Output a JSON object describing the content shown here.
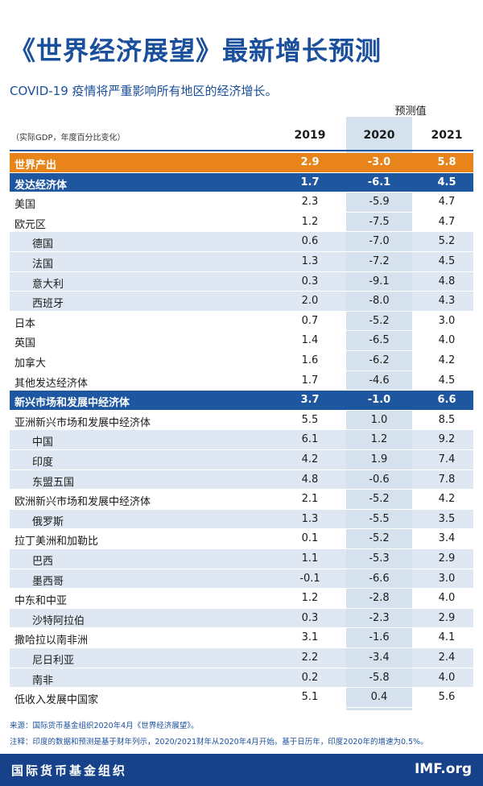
{
  "header": {
    "title": "《世界经济展望》最新增长预测",
    "subtitle": "COVID-19 疫情将严重影响所有地区的经济增长。"
  },
  "table": {
    "forecast_label": "预测值",
    "note": "（实际GDP，年度百分比变化）",
    "columns": [
      "2019",
      "2020",
      "2021"
    ],
    "rows": [
      {
        "label": "世界产出",
        "kind": "world",
        "values": [
          "2.9",
          "-3.0",
          "5.8"
        ]
      },
      {
        "label": "发达经济体",
        "kind": "group",
        "values": [
          "1.7",
          "-6.1",
          "4.5"
        ]
      },
      {
        "label": "美国",
        "kind": "main",
        "values": [
          "2.3",
          "-5.9",
          "4.7"
        ]
      },
      {
        "label": "欧元区",
        "kind": "main",
        "values": [
          "1.2",
          "-7.5",
          "4.7"
        ]
      },
      {
        "label": "德国",
        "kind": "sub",
        "values": [
          "0.6",
          "-7.0",
          "5.2"
        ]
      },
      {
        "label": "法国",
        "kind": "sub",
        "values": [
          "1.3",
          "-7.2",
          "4.5"
        ]
      },
      {
        "label": "意大利",
        "kind": "sub",
        "values": [
          "0.3",
          "-9.1",
          "4.8"
        ]
      },
      {
        "label": "西班牙",
        "kind": "sub",
        "values": [
          "2.0",
          "-8.0",
          "4.3"
        ]
      },
      {
        "label": "日本",
        "kind": "main",
        "values": [
          "0.7",
          "-5.2",
          "3.0"
        ]
      },
      {
        "label": "英国",
        "kind": "main",
        "values": [
          "1.4",
          "-6.5",
          "4.0"
        ]
      },
      {
        "label": "加拿大",
        "kind": "main",
        "values": [
          "1.6",
          "-6.2",
          "4.2"
        ]
      },
      {
        "label": "其他发达经济体",
        "kind": "main",
        "values": [
          "1.7",
          "-4.6",
          "4.5"
        ]
      },
      {
        "label": "新兴市场和发展中经济体",
        "kind": "group",
        "values": [
          "3.7",
          "-1.0",
          "6.6"
        ]
      },
      {
        "label": "亚洲新兴市场和发展中经济体",
        "kind": "main",
        "values": [
          "5.5",
          "1.0",
          "8.5"
        ]
      },
      {
        "label": "中国",
        "kind": "sub",
        "values": [
          "6.1",
          "1.2",
          "9.2"
        ]
      },
      {
        "label": "印度",
        "kind": "sub",
        "values": [
          "4.2",
          "1.9",
          "7.4"
        ]
      },
      {
        "label": "东盟五国",
        "kind": "sub",
        "values": [
          "4.8",
          "-0.6",
          "7.8"
        ]
      },
      {
        "label": "欧洲新兴市场和发展中经济体",
        "kind": "main",
        "values": [
          "2.1",
          "-5.2",
          "4.2"
        ]
      },
      {
        "label": "俄罗斯",
        "kind": "sub",
        "values": [
          "1.3",
          "-5.5",
          "3.5"
        ]
      },
      {
        "label": "拉丁美洲和加勒比",
        "kind": "main",
        "values": [
          "0.1",
          "-5.2",
          "3.4"
        ]
      },
      {
        "label": "巴西",
        "kind": "sub",
        "values": [
          "1.1",
          "-5.3",
          "2.9"
        ]
      },
      {
        "label": "墨西哥",
        "kind": "sub",
        "values": [
          "-0.1",
          "-6.6",
          "3.0"
        ]
      },
      {
        "label": "中东和中亚",
        "kind": "main",
        "values": [
          "1.2",
          "-2.8",
          "4.0"
        ]
      },
      {
        "label": "沙特阿拉伯",
        "kind": "sub",
        "values": [
          "0.3",
          "-2.3",
          "2.9"
        ]
      },
      {
        "label": "撒哈拉以南非洲",
        "kind": "main",
        "values": [
          "3.1",
          "-1.6",
          "4.1"
        ]
      },
      {
        "label": "尼日利亚",
        "kind": "sub",
        "values": [
          "2.2",
          "-3.4",
          "2.4"
        ]
      },
      {
        "label": "南非",
        "kind": "sub",
        "values": [
          "0.2",
          "-5.8",
          "4.0"
        ]
      },
      {
        "label": "低收入发展中国家",
        "kind": "main",
        "values": [
          "5.1",
          "0.4",
          "5.6"
        ]
      }
    ]
  },
  "footer": {
    "source": "来源：国际货币基金组织2020年4月《世界经济展望》。",
    "note": "注释：印度的数据和预测是基于财年列示，2020/2021财年从2020年4月开始。基于日历年，印度2020年的增速为0.5%。",
    "org": "国际货币基金组织",
    "site": "IMF.org"
  }
}
